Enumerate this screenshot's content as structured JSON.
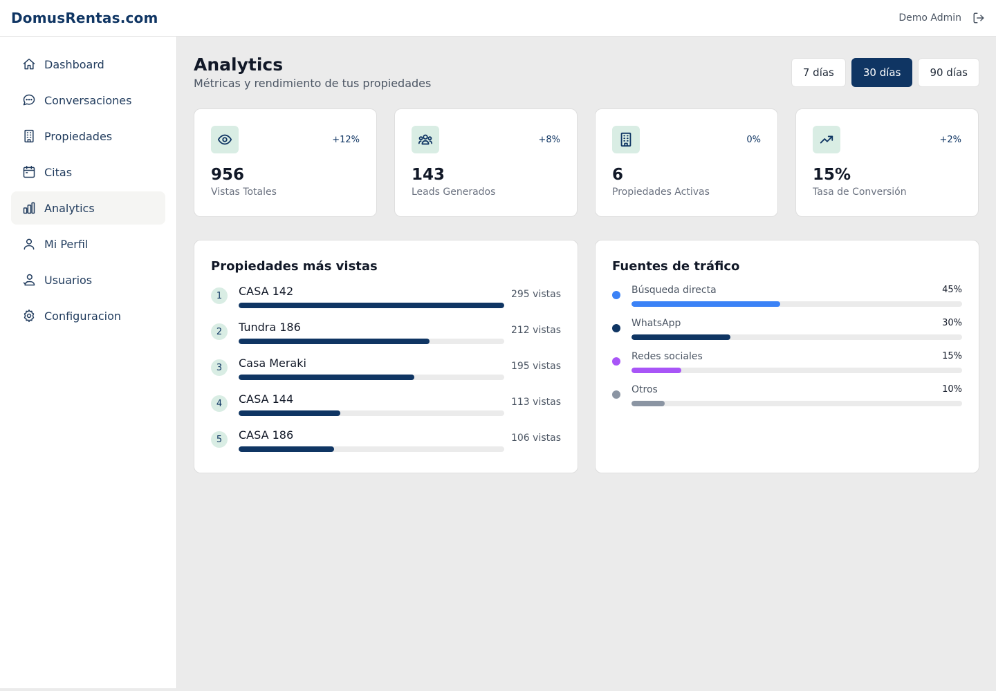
{
  "header": {
    "brand": "DomusRentas.com",
    "user_name": "Demo Admin"
  },
  "sidebar": {
    "items": [
      {
        "label": "Dashboard",
        "icon": "home-icon"
      },
      {
        "label": "Conversaciones",
        "icon": "chat-icon"
      },
      {
        "label": "Propiedades",
        "icon": "building-icon"
      },
      {
        "label": "Citas",
        "icon": "calendar-icon"
      },
      {
        "label": "Analytics",
        "icon": "bar-chart-icon",
        "active": true
      },
      {
        "label": "Mi Perfil",
        "icon": "user-icon"
      },
      {
        "label": "Usuarios",
        "icon": "users-icon"
      },
      {
        "label": "Configuracion",
        "icon": "gear-icon"
      }
    ]
  },
  "page": {
    "title": "Analytics",
    "subtitle": "Métricas y rendimiento de tus propiedades"
  },
  "ranges": {
    "options": [
      "7 días",
      "30 días",
      "90 días"
    ],
    "selected": "30 días"
  },
  "stats": [
    {
      "icon": "eye-icon",
      "change": "+12%",
      "value": "956",
      "label": "Vistas Totales"
    },
    {
      "icon": "users-group-icon",
      "change": "+8%",
      "value": "143",
      "label": "Leads Generados"
    },
    {
      "icon": "building-icon",
      "change": "0%",
      "value": "6",
      "label": "Propiedades Activas"
    },
    {
      "icon": "trending-up-icon",
      "change": "+2%",
      "value": "15%",
      "label": "Tasa de Conversión"
    }
  ],
  "top_properties": {
    "title": "Propiedades más vistas",
    "items": [
      {
        "rank": "1",
        "name": "CASA 142",
        "views": 295,
        "views_label": "295 vistas"
      },
      {
        "rank": "2",
        "name": "Tundra 186",
        "views": 212,
        "views_label": "212 vistas"
      },
      {
        "rank": "3",
        "name": "Casa Meraki",
        "views": 195,
        "views_label": "195 vistas"
      },
      {
        "rank": "4",
        "name": "CASA 144",
        "views": 113,
        "views_label": "113 vistas"
      },
      {
        "rank": "5",
        "name": "CASA 186",
        "views": 106,
        "views_label": "106 vistas"
      }
    ]
  },
  "traffic_sources": {
    "title": "Fuentes de tráfico",
    "items": [
      {
        "name": "Búsqueda directa",
        "percent": 45,
        "percent_label": "45%",
        "color": "#3b82f6"
      },
      {
        "name": "WhatsApp",
        "percent": 30,
        "percent_label": "30%",
        "color": "#0f3563"
      },
      {
        "name": "Redes sociales",
        "percent": 15,
        "percent_label": "15%",
        "color": "#a855f7"
      },
      {
        "name": "Otros",
        "percent": 10,
        "percent_label": "10%",
        "color": "#8b95a3"
      }
    ]
  }
}
